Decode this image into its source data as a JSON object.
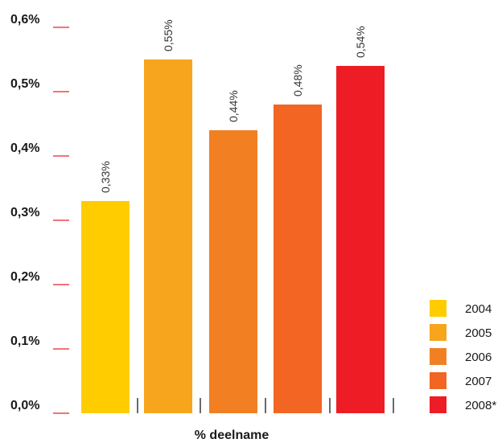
{
  "chart_data": {
    "type": "bar",
    "categories": [
      "2004",
      "2005",
      "2006",
      "2007",
      "2008*"
    ],
    "values": [
      0.33,
      0.55,
      0.44,
      0.48,
      0.54
    ],
    "data_labels": [
      "0,33%",
      "0,55%",
      "0,44%",
      "0,48%",
      "0,54%"
    ],
    "colors": [
      "#FFCC00",
      "#F7A51C",
      "#F28023",
      "#F26522",
      "#EE1C25"
    ],
    "ylim": [
      0,
      0.6
    ],
    "yticks": [
      0,
      0.1,
      0.2,
      0.3,
      0.4,
      0.5,
      0.6
    ],
    "ytick_labels": [
      "0,0%",
      "0,1%",
      "0,2%",
      "0,3%",
      "0,4%",
      "0,5%",
      "0,6%"
    ],
    "tick_color": "#E8202A",
    "title": "",
    "xlabel": "% deelname",
    "ylabel": "",
    "legend": {
      "position": "bottom-right",
      "entries": [
        "2004",
        "2005",
        "2006",
        "2007",
        "2008*"
      ]
    },
    "grid": false
  }
}
